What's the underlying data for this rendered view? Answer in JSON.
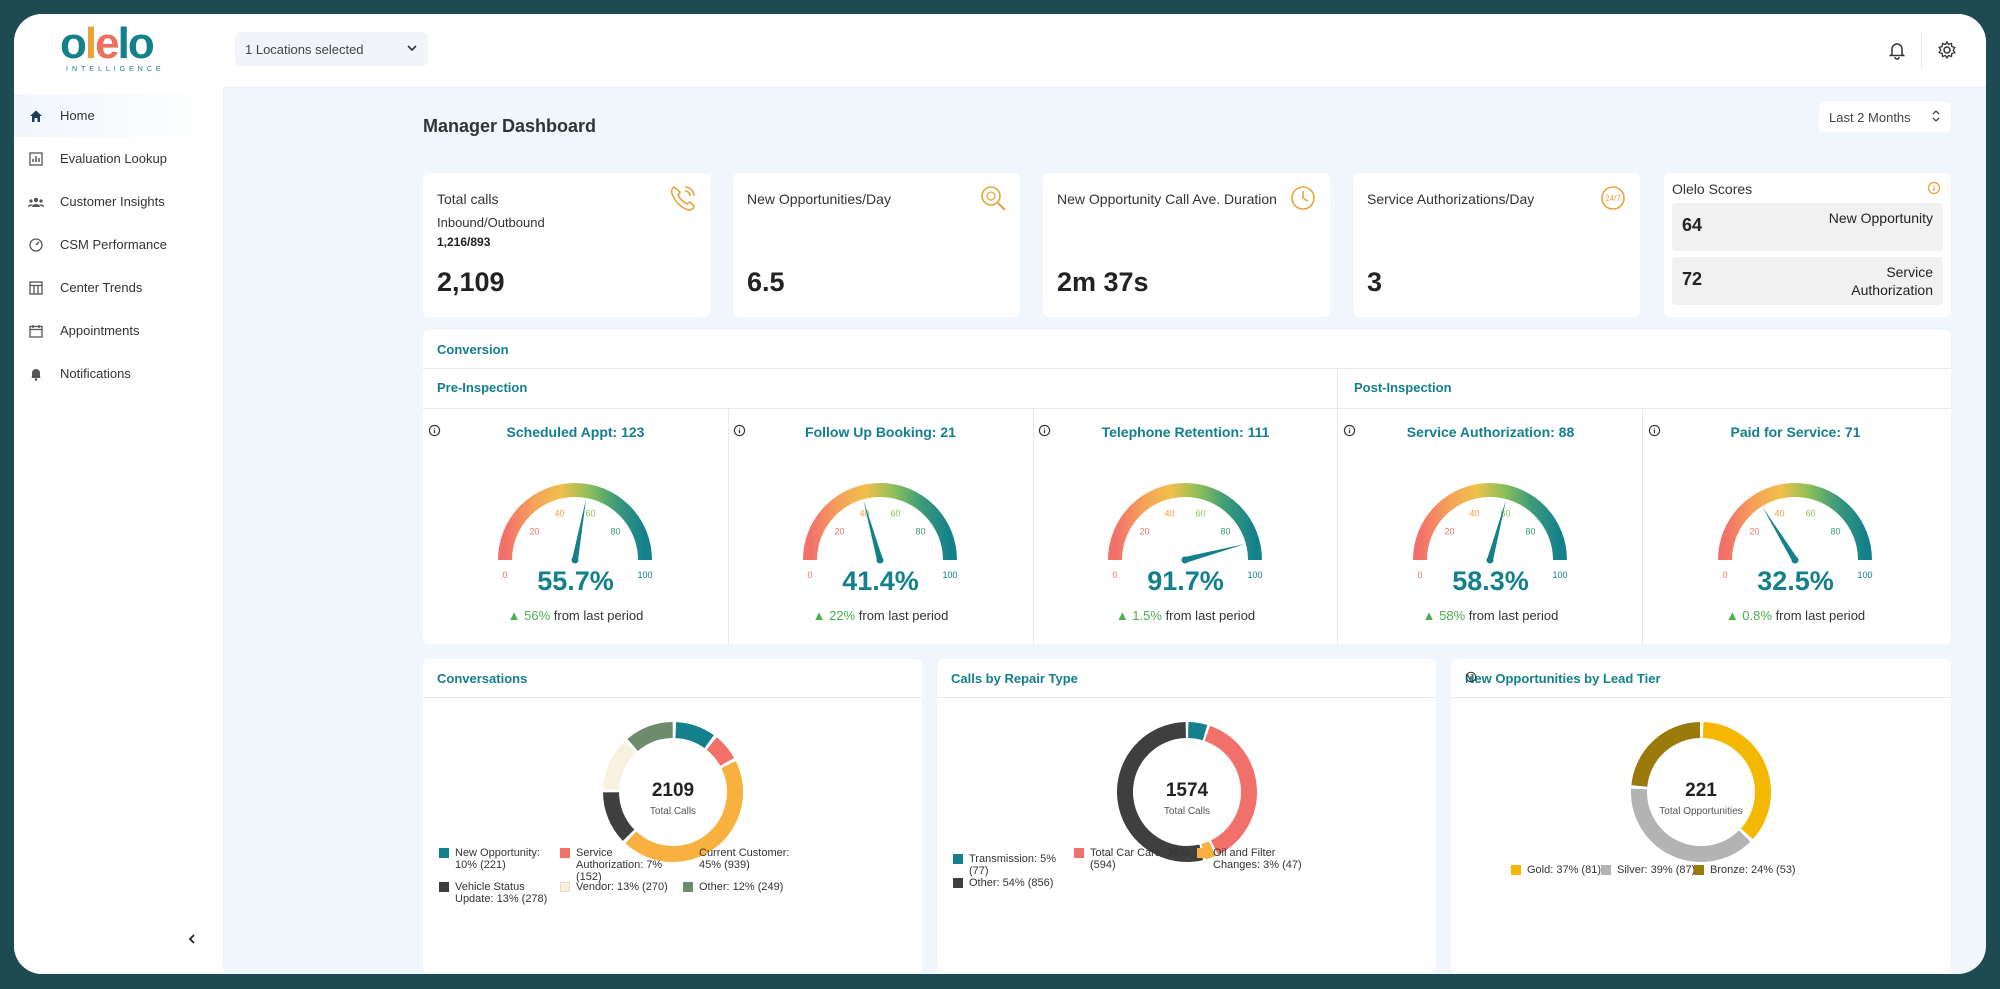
{
  "header": {
    "logo_text": "olelo",
    "logo_sub": "INTELLIGENCE",
    "locations": "1 Locations selected"
  },
  "sidebar": {
    "items": [
      {
        "label": "Home",
        "icon": "home-icon"
      },
      {
        "label": "Evaluation Lookup",
        "icon": "chart-icon"
      },
      {
        "label": "Customer Insights",
        "icon": "people-icon"
      },
      {
        "label": "CSM Performance",
        "icon": "speedometer-icon"
      },
      {
        "label": "Center Trends",
        "icon": "table-icon"
      },
      {
        "label": "Appointments",
        "icon": "calendar-icon"
      },
      {
        "label": "Notifications",
        "icon": "bell-icon"
      }
    ]
  },
  "page": {
    "title": "Manager Dashboard",
    "range": "Last 2 Months"
  },
  "stats": [
    {
      "label": "Total calls",
      "sub1": "Inbound/Outbound",
      "sub2": "1,216/893",
      "value": "2,109"
    },
    {
      "label": "New Opportunities/Day",
      "value": "6.5"
    },
    {
      "label": "New Opportunity Call Ave. Duration",
      "value": "2m 37s"
    },
    {
      "label": "Service Authorizations/Day",
      "value": "3"
    }
  ],
  "scores": {
    "title": "Olelo Scores",
    "rows": [
      {
        "value": "64",
        "label": "New Opportunity"
      },
      {
        "value": "72",
        "label": "Service Authorization"
      }
    ]
  },
  "conversion": {
    "title": "Conversion",
    "pre": "Pre-Inspection",
    "post": "Post-Inspection",
    "ticks": [
      "0",
      "20",
      "40",
      "60",
      "80",
      "100"
    ],
    "from_text": "from last period",
    "gauges": [
      {
        "title": "Scheduled Appt: 123",
        "pct": "55.7%",
        "value": 55.7,
        "change": "▲ 56%"
      },
      {
        "title": "Follow Up Booking: 21",
        "pct": "41.4%",
        "value": 41.4,
        "change": "▲ 22%"
      },
      {
        "title": "Telephone Retention: 111",
        "pct": "91.7%",
        "value": 91.7,
        "change": "▲ 1.5%"
      },
      {
        "title": "Service Authorization: 88",
        "pct": "58.3%",
        "value": 58.3,
        "change": "▲ 58%"
      },
      {
        "title": "Paid for Service: 71",
        "pct": "32.5%",
        "value": 32.5,
        "change": "▲ 0.8%"
      }
    ]
  },
  "chart_data": [
    {
      "type": "pie",
      "title": "Conversations",
      "center_value": "2109",
      "center_label": "Total Calls",
      "slices": [
        {
          "label": "New Opportunity: 10% (221)",
          "value": 10,
          "color": "#13808c"
        },
        {
          "label": "Service Authorization: 7% (152)",
          "value": 7,
          "color": "#f2706a"
        },
        {
          "label": "Current Customer: 45% (939)",
          "value": 45,
          "color": "#f8b03f"
        },
        {
          "label": "Vehicle Status Update: 13% (278)",
          "value": 13,
          "color": "#3f3f3f"
        },
        {
          "label": "Vendor: 13% (270)",
          "value": 13,
          "color": "#f8f1df"
        },
        {
          "label": "Other: 12% (249)",
          "value": 12,
          "color": "#6f8b6e"
        }
      ]
    },
    {
      "type": "pie",
      "title": "Calls by Repair Type",
      "center_value": "1574",
      "center_label": "Total Calls",
      "slices": [
        {
          "label": "Transmission: 5% (77)",
          "value": 5,
          "color": "#13808c"
        },
        {
          "label": "Total Car Care: 38% (594)",
          "value": 38,
          "color": "#f2706a"
        },
        {
          "label": "Oil and Filter Changes: 3% (47)",
          "value": 3,
          "color": "#f8b03f"
        },
        {
          "label": "Other: 54% (856)",
          "value": 54,
          "color": "#3f3f3f"
        }
      ]
    },
    {
      "type": "pie",
      "title": "New Opportunities by Lead Tier",
      "center_value": "221",
      "center_label": "Total Opportunities",
      "slices": [
        {
          "label": "Gold: 37% (81)",
          "value": 37,
          "color": "#f5b800"
        },
        {
          "label": "Silver: 39% (87)",
          "value": 39,
          "color": "#b3b3b3"
        },
        {
          "label": "Bronze: 24% (53)",
          "value": 24,
          "color": "#9b7a0c"
        }
      ]
    }
  ]
}
